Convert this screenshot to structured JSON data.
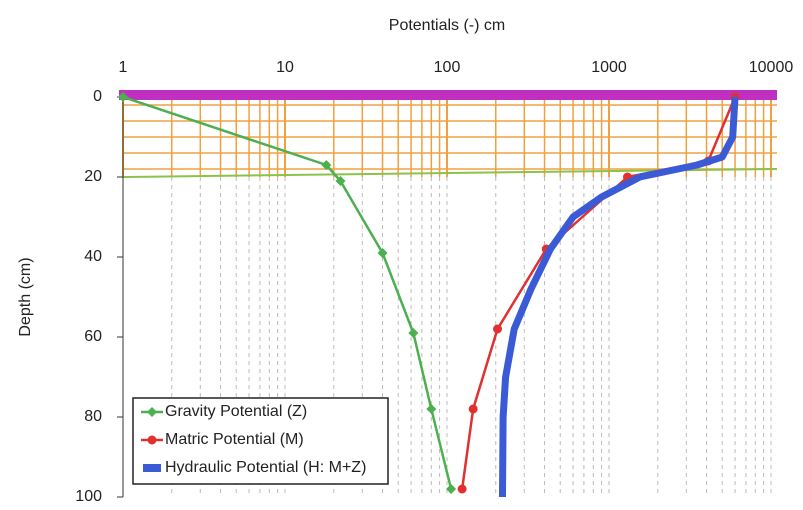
{
  "chart_data": {
    "type": "line",
    "title": "Potentials (-) cm",
    "y_label": "Depth (cm)",
    "x_log": true,
    "y_inverted": true,
    "xlim": [
      1,
      10000
    ],
    "xticks": [
      1,
      10,
      100,
      1000,
      10000
    ],
    "ylim": [
      0,
      100
    ],
    "yticks": [
      0,
      20,
      40,
      60,
      80,
      100
    ],
    "grid": true,
    "legend": "lower left",
    "series": [
      {
        "name": "Gravity Potential (Z)",
        "color": "#4caf50",
        "marker": "diamond",
        "x": [
          1,
          18,
          22,
          40,
          62,
          80,
          106
        ],
        "values": [
          0,
          17,
          21,
          39,
          59,
          78,
          98
        ]
      },
      {
        "name": "Matric Potential (M)",
        "color": "#e03030",
        "marker": "circle",
        "x": [
          6000,
          4100,
          1300,
          410,
          205,
          145,
          124
        ],
        "values": [
          0,
          16,
          20,
          38,
          58,
          78,
          98
        ]
      },
      {
        "name": "Hydraulic Potential (H: M+Z)",
        "color": "#3b5bd6",
        "marker": "none",
        "x": [
          6000,
          5800,
          5000,
          3500,
          1550,
          900,
          600,
          435,
          330,
          260,
          230,
          222,
          220
        ],
        "values": [
          0,
          10,
          15,
          17,
          20,
          25,
          30,
          38,
          48,
          58,
          70,
          80,
          100
        ]
      }
    ]
  }
}
